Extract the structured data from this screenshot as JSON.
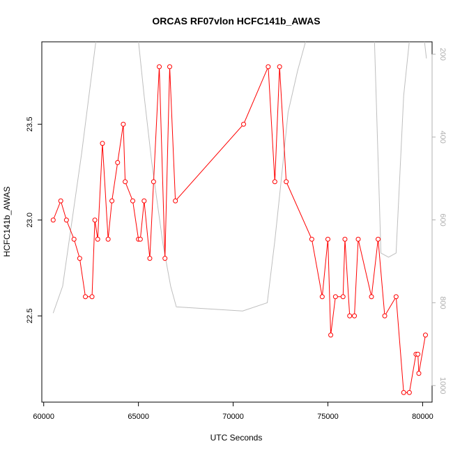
{
  "chart_data": {
    "type": "line",
    "title": "ORCAS RF07vlon HCFC141b_AWAS",
    "xlabel": "UTC Seconds",
    "ylabel": "HCFC141b_AWAS",
    "xlim": [
      59900,
      80500
    ],
    "ylim": [
      22.05,
      23.93
    ],
    "y2lim": [
      170,
      1040
    ],
    "x_ticks": [
      60000,
      65000,
      70000,
      75000,
      80000
    ],
    "y_ticks": [
      22.5,
      23.0,
      23.5
    ],
    "y2_ticks": [
      200,
      400,
      600,
      800,
      1000
    ],
    "grid": false,
    "colors": {
      "series": "#ff0000",
      "secondary": "#bebebe"
    },
    "series": [
      {
        "marker": "open-circle",
        "x": [
          60500,
          60900,
          61200,
          61600,
          61900,
          62200,
          62550,
          62700,
          62850,
          63100,
          63400,
          63600,
          63900,
          64200,
          64300,
          64700,
          65000,
          65100,
          65300,
          65600,
          65800,
          66100,
          66400,
          66650,
          66950,
          70550,
          71850,
          72200,
          72450,
          72800,
          74150,
          74700,
          75000,
          75150,
          75400,
          75800,
          75900,
          76150,
          76400,
          76600,
          77300,
          77650,
          78000,
          78600,
          79000,
          79300,
          79650,
          79750,
          79800,
          80150
        ],
        "y": [
          23.0,
          23.1,
          23.0,
          22.9,
          22.8,
          22.6,
          22.6,
          23.0,
          22.9,
          23.4,
          22.9,
          23.1,
          23.3,
          23.5,
          23.2,
          23.1,
          22.9,
          22.9,
          23.1,
          22.8,
          23.2,
          23.8,
          22.8,
          23.8,
          23.1,
          23.5,
          23.8,
          23.2,
          23.8,
          23.2,
          22.9,
          22.6,
          22.9,
          22.4,
          22.6,
          22.6,
          22.9,
          22.5,
          22.5,
          22.9,
          22.6,
          22.9,
          22.5,
          22.6,
          22.1,
          22.1,
          22.3,
          22.3,
          22.2,
          22.4
        ]
      },
      {
        "axis": "right",
        "x": [
          60500,
          61000,
          61500,
          62000,
          62500,
          63000,
          64800,
          65300,
          65700,
          66000,
          66300,
          66700,
          67000,
          70500,
          71800,
          72200,
          72500,
          72900,
          73400,
          74000,
          77400,
          77800,
          78200,
          78600,
          79000,
          79500,
          80100,
          80200
        ],
        "y": [
          825,
          760,
          600,
          440,
          260,
          80,
          80,
          300,
          460,
          560,
          660,
          760,
          810,
          820,
          800,
          650,
          520,
          340,
          240,
          140,
          80,
          680,
          690,
          680,
          300,
          80,
          170,
          210
        ]
      }
    ]
  }
}
